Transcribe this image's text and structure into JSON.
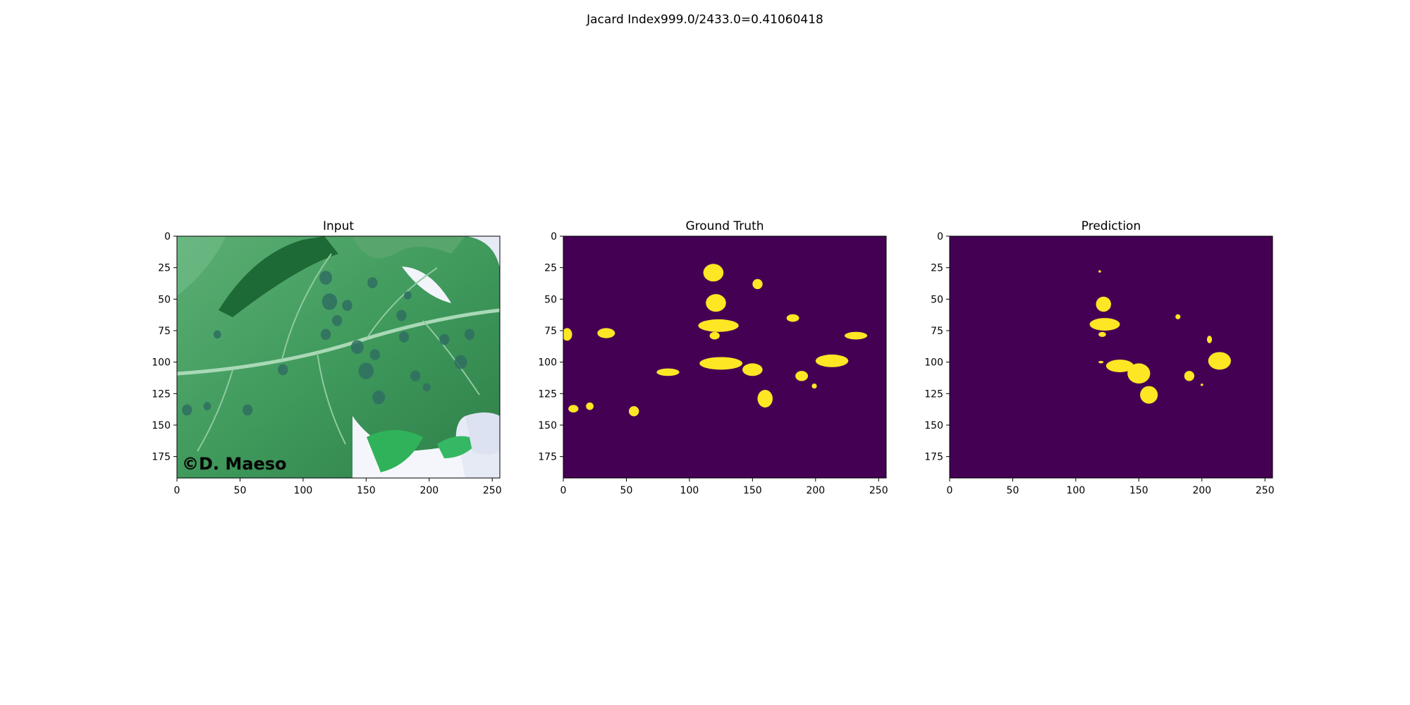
{
  "figure": {
    "suptitle": "Jacard Index999.0/2433.0=0.41060418"
  },
  "chart_data": [
    {
      "type": "heatmap",
      "title": "Input",
      "content": "photo of a tomato leaf with dark leaf spots",
      "watermark": "©D. Maeso",
      "xlim": [
        0,
        256
      ],
      "ylim": [
        192,
        0
      ],
      "xticks": [
        0,
        50,
        100,
        150,
        200,
        250
      ],
      "yticks": [
        0,
        25,
        50,
        75,
        100,
        125,
        150,
        175
      ],
      "colors": {
        "leaf": "#3f9a5c",
        "leaf_dark": "#1f6b3a",
        "spot": "#2f6e62",
        "background": "#e9ecf6"
      },
      "spots": [
        {
          "x": 118,
          "y": 33,
          "r": 5
        },
        {
          "x": 155,
          "y": 37,
          "r": 4
        },
        {
          "x": 121,
          "y": 52,
          "r": 6
        },
        {
          "x": 135,
          "y": 55,
          "r": 4
        },
        {
          "x": 183,
          "y": 47,
          "r": 3
        },
        {
          "x": 127,
          "y": 67,
          "r": 4
        },
        {
          "x": 178,
          "y": 63,
          "r": 4
        },
        {
          "x": 118,
          "y": 78,
          "r": 4
        },
        {
          "x": 212,
          "y": 82,
          "r": 4
        },
        {
          "x": 232,
          "y": 78,
          "r": 4
        },
        {
          "x": 143,
          "y": 88,
          "r": 5
        },
        {
          "x": 157,
          "y": 94,
          "r": 4
        },
        {
          "x": 180,
          "y": 80,
          "r": 4
        },
        {
          "x": 225,
          "y": 100,
          "r": 5
        },
        {
          "x": 150,
          "y": 107,
          "r": 6
        },
        {
          "x": 189,
          "y": 111,
          "r": 4
        },
        {
          "x": 198,
          "y": 120,
          "r": 3
        },
        {
          "x": 160,
          "y": 128,
          "r": 5
        },
        {
          "x": 56,
          "y": 138,
          "r": 4
        },
        {
          "x": 8,
          "y": 138,
          "r": 4
        },
        {
          "x": 24,
          "y": 135,
          "r": 3
        },
        {
          "x": 32,
          "y": 78,
          "r": 3
        },
        {
          "x": 84,
          "y": 106,
          "r": 4
        }
      ]
    },
    {
      "type": "heatmap",
      "title": "Ground Truth",
      "xlim": [
        0,
        256
      ],
      "ylim": [
        192,
        0
      ],
      "xticks": [
        0,
        50,
        100,
        150,
        200,
        250
      ],
      "yticks": [
        0,
        25,
        50,
        75,
        100,
        125,
        150,
        175
      ],
      "colors": {
        "background": "#440154",
        "mask": "#fde725"
      },
      "mask_regions": [
        {
          "cx": 119,
          "cy": 29,
          "rx": 8,
          "ry": 7
        },
        {
          "cx": 121,
          "cy": 53,
          "rx": 8,
          "ry": 7
        },
        {
          "cx": 154,
          "cy": 38,
          "rx": 4,
          "ry": 4
        },
        {
          "cx": 123,
          "cy": 71,
          "rx": 16,
          "ry": 5
        },
        {
          "cx": 120,
          "cy": 79,
          "rx": 4,
          "ry": 3
        },
        {
          "cx": 182,
          "cy": 65,
          "rx": 5,
          "ry": 3
        },
        {
          "cx": 232,
          "cy": 79,
          "rx": 9,
          "ry": 3
        },
        {
          "cx": 3,
          "cy": 78,
          "rx": 4,
          "ry": 5
        },
        {
          "cx": 34,
          "cy": 77,
          "rx": 7,
          "ry": 4
        },
        {
          "cx": 83,
          "cy": 108,
          "rx": 9,
          "ry": 3
        },
        {
          "cx": 125,
          "cy": 101,
          "rx": 17,
          "ry": 5
        },
        {
          "cx": 150,
          "cy": 106,
          "rx": 8,
          "ry": 5
        },
        {
          "cx": 213,
          "cy": 99,
          "rx": 13,
          "ry": 5
        },
        {
          "cx": 189,
          "cy": 111,
          "rx": 5,
          "ry": 4
        },
        {
          "cx": 199,
          "cy": 119,
          "rx": 2,
          "ry": 2
        },
        {
          "cx": 160,
          "cy": 129,
          "rx": 6,
          "ry": 7
        },
        {
          "cx": 8,
          "cy": 137,
          "rx": 4,
          "ry": 3
        },
        {
          "cx": 21,
          "cy": 135,
          "rx": 3,
          "ry": 3
        },
        {
          "cx": 56,
          "cy": 139,
          "rx": 4,
          "ry": 4
        }
      ]
    },
    {
      "type": "heatmap",
      "title": "Prediction",
      "xlim": [
        0,
        256
      ],
      "ylim": [
        192,
        0
      ],
      "xticks": [
        0,
        50,
        100,
        150,
        200,
        250
      ],
      "yticks": [
        0,
        25,
        50,
        75,
        100,
        125,
        150,
        175
      ],
      "colors": {
        "background": "#440154",
        "mask": "#fde725"
      },
      "mask_regions": [
        {
          "cx": 119,
          "cy": 28,
          "rx": 1,
          "ry": 1
        },
        {
          "cx": 122,
          "cy": 54,
          "rx": 6,
          "ry": 6
        },
        {
          "cx": 123,
          "cy": 70,
          "rx": 12,
          "ry": 5
        },
        {
          "cx": 121,
          "cy": 78,
          "rx": 3,
          "ry": 2
        },
        {
          "cx": 181,
          "cy": 64,
          "rx": 2,
          "ry": 2
        },
        {
          "cx": 206,
          "cy": 82,
          "rx": 2,
          "ry": 3
        },
        {
          "cx": 214,
          "cy": 99,
          "rx": 9,
          "ry": 7
        },
        {
          "cx": 120,
          "cy": 100,
          "rx": 2,
          "ry": 1
        },
        {
          "cx": 135,
          "cy": 103,
          "rx": 11,
          "ry": 5
        },
        {
          "cx": 150,
          "cy": 109,
          "rx": 9,
          "ry": 8
        },
        {
          "cx": 158,
          "cy": 126,
          "rx": 7,
          "ry": 7
        },
        {
          "cx": 190,
          "cy": 111,
          "rx": 4,
          "ry": 4
        },
        {
          "cx": 200,
          "cy": 118,
          "rx": 1,
          "ry": 1
        }
      ]
    }
  ]
}
